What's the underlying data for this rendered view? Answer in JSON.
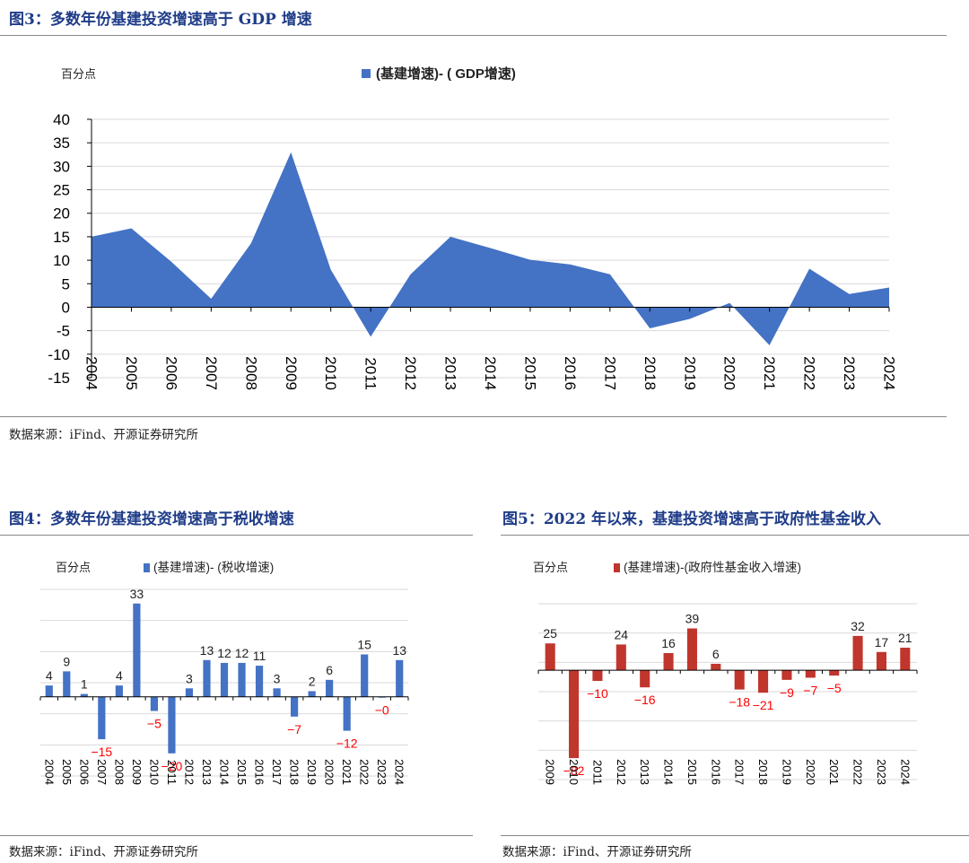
{
  "figures": [
    {
      "title": "图3：多数年份基建投资增速高于 GDP 增速",
      "source": "数据来源：iFind、开源证券研究所"
    },
    {
      "title": "图4：多数年份基建投资增速高于税收增速",
      "source": "数据来源：iFind、开源证券研究所"
    },
    {
      "title": "图5：2022 年以来，基建投资增速高于政府性基金收入",
      "source": "数据来源：iFind、开源证券研究所"
    }
  ],
  "chart_data": [
    {
      "type": "area",
      "unit": "百分点",
      "legend": "(基建增速)- ( GDP增速)",
      "color": "#4472c4",
      "categories": [
        "2004",
        "2005",
        "2006",
        "2007",
        "2008",
        "2009",
        "2010",
        "2011",
        "2012",
        "2013",
        "2014",
        "2015",
        "2016",
        "2017",
        "2018",
        "2019",
        "2020",
        "2021",
        "2022",
        "2023",
        "2024"
      ],
      "values": [
        15,
        16.8,
        9.7,
        1.8,
        13.6,
        33,
        8,
        -6.3,
        7,
        15,
        12.6,
        10.1,
        9.1,
        7,
        -4.5,
        -2.5,
        0.9,
        -8.1,
        8.2,
        2.8,
        4.2
      ],
      "ylim": [
        -15,
        40
      ],
      "yticks": [
        40,
        35,
        30,
        25,
        20,
        15,
        10,
        5,
        0,
        -5,
        -10,
        -15
      ],
      "grid": true
    },
    {
      "type": "bar",
      "unit": "百分点",
      "legend": "(基建增速)- (税收增速)",
      "color": "#4472c4",
      "label_neg_color": "#ff0000",
      "categories": [
        "2004",
        "2005",
        "2006",
        "2007",
        "2008",
        "2009",
        "2010",
        "2011",
        "2012",
        "2013",
        "2014",
        "2015",
        "2016",
        "2017",
        "2018",
        "2019",
        "2020",
        "2021",
        "2022",
        "2023",
        "2024"
      ],
      "values": [
        4,
        9,
        1,
        -15,
        4,
        33,
        -5,
        -20,
        3,
        13,
        12,
        12,
        11,
        3,
        -7,
        2,
        6,
        -12,
        15,
        -0.3,
        13
      ],
      "labels": [
        "4",
        "9",
        "1",
        "-15",
        "4",
        "33",
        "-5",
        "-20",
        "3",
        "13",
        "12",
        "12",
        "11",
        "3",
        "-7",
        "2",
        "6",
        "-12",
        "15",
        "-0",
        "13"
      ],
      "ylim": [
        -28,
        38
      ],
      "grid": true
    },
    {
      "type": "bar",
      "unit": "百分点",
      "legend": "(基建增速)-(政府性基金收入增速)",
      "color": "#c0362c",
      "label_neg_color": "#ff0000",
      "categories": [
        "2009",
        "2010",
        "2011",
        "2012",
        "2013",
        "2014",
        "2015",
        "2016",
        "2017",
        "2018",
        "2019",
        "2020",
        "2021",
        "2022",
        "2023",
        "2024"
      ],
      "values": [
        25,
        -82,
        -10,
        24,
        -16,
        16,
        39,
        6,
        -18,
        -21,
        -9,
        -7,
        -5,
        32,
        17,
        21
      ],
      "labels": [
        "25",
        "-82",
        "-10",
        "24",
        "-16",
        "16",
        "39",
        "6",
        "-18",
        "-21",
        "-9",
        "-7",
        "-5",
        "32",
        "17",
        "21"
      ],
      "ylim": [
        -102,
        62
      ],
      "grid": true
    }
  ]
}
